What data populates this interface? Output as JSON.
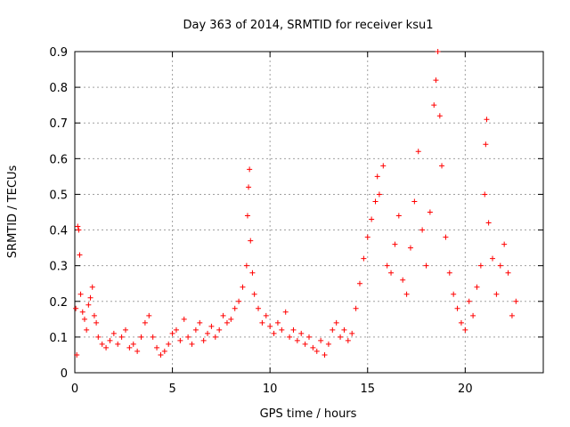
{
  "chart_data": {
    "type": "scatter",
    "title": "Day 363 of 2014, SRMTID for receiver ksu1",
    "xlabel": "GPS time / hours",
    "ylabel": "SRMTID / TECUs",
    "xlim": [
      0,
      24
    ],
    "ylim": [
      0,
      0.9
    ],
    "xticks": [
      0,
      5,
      10,
      15,
      20
    ],
    "yticks": [
      0,
      0.1,
      0.2,
      0.3,
      0.4,
      0.5,
      0.6,
      0.7,
      0.8,
      0.9
    ],
    "grid": true,
    "marker": "+",
    "color": "#ff0000",
    "series": [
      {
        "name": "ksu1",
        "points": [
          [
            0.05,
            0.18
          ],
          [
            0.1,
            0.05
          ],
          [
            0.15,
            0.41
          ],
          [
            0.2,
            0.4
          ],
          [
            0.25,
            0.33
          ],
          [
            0.3,
            0.22
          ],
          [
            0.4,
            0.17
          ],
          [
            0.5,
            0.15
          ],
          [
            0.6,
            0.12
          ],
          [
            0.7,
            0.19
          ],
          [
            0.8,
            0.21
          ],
          [
            0.9,
            0.24
          ],
          [
            1.0,
            0.16
          ],
          [
            1.1,
            0.14
          ],
          [
            1.2,
            0.1
          ],
          [
            1.4,
            0.08
          ],
          [
            1.6,
            0.07
          ],
          [
            1.8,
            0.09
          ],
          [
            2.0,
            0.11
          ],
          [
            2.2,
            0.08
          ],
          [
            2.4,
            0.1
          ],
          [
            2.6,
            0.12
          ],
          [
            2.8,
            0.07
          ],
          [
            3.0,
            0.08
          ],
          [
            3.2,
            0.06
          ],
          [
            3.4,
            0.1
          ],
          [
            3.6,
            0.14
          ],
          [
            3.8,
            0.16
          ],
          [
            4.0,
            0.1
          ],
          [
            4.2,
            0.07
          ],
          [
            4.4,
            0.05
          ],
          [
            4.6,
            0.06
          ],
          [
            4.8,
            0.08
          ],
          [
            5.0,
            0.11
          ],
          [
            5.2,
            0.12
          ],
          [
            5.4,
            0.09
          ],
          [
            5.6,
            0.15
          ],
          [
            5.8,
            0.1
          ],
          [
            6.0,
            0.08
          ],
          [
            6.2,
            0.12
          ],
          [
            6.4,
            0.14
          ],
          [
            6.6,
            0.09
          ],
          [
            6.8,
            0.11
          ],
          [
            7.0,
            0.13
          ],
          [
            7.2,
            0.1
          ],
          [
            7.4,
            0.12
          ],
          [
            7.6,
            0.16
          ],
          [
            7.8,
            0.14
          ],
          [
            8.0,
            0.15
          ],
          [
            8.2,
            0.18
          ],
          [
            8.4,
            0.2
          ],
          [
            8.6,
            0.24
          ],
          [
            8.8,
            0.3
          ],
          [
            8.85,
            0.44
          ],
          [
            8.9,
            0.52
          ],
          [
            8.95,
            0.57
          ],
          [
            9.0,
            0.37
          ],
          [
            9.1,
            0.28
          ],
          [
            9.2,
            0.22
          ],
          [
            9.4,
            0.18
          ],
          [
            9.6,
            0.14
          ],
          [
            9.8,
            0.16
          ],
          [
            10.0,
            0.13
          ],
          [
            10.2,
            0.11
          ],
          [
            10.4,
            0.14
          ],
          [
            10.6,
            0.12
          ],
          [
            10.8,
            0.17
          ],
          [
            11.0,
            0.1
          ],
          [
            11.2,
            0.12
          ],
          [
            11.4,
            0.09
          ],
          [
            11.6,
            0.11
          ],
          [
            11.8,
            0.08
          ],
          [
            12.0,
            0.1
          ],
          [
            12.2,
            0.07
          ],
          [
            12.4,
            0.06
          ],
          [
            12.6,
            0.09
          ],
          [
            12.8,
            0.05
          ],
          [
            13.0,
            0.08
          ],
          [
            13.2,
            0.12
          ],
          [
            13.4,
            0.14
          ],
          [
            13.6,
            0.1
          ],
          [
            13.8,
            0.12
          ],
          [
            14.0,
            0.09
          ],
          [
            14.2,
            0.11
          ],
          [
            14.4,
            0.18
          ],
          [
            14.6,
            0.25
          ],
          [
            14.8,
            0.32
          ],
          [
            15.0,
            0.38
          ],
          [
            15.2,
            0.43
          ],
          [
            15.4,
            0.48
          ],
          [
            15.5,
            0.55
          ],
          [
            15.6,
            0.5
          ],
          [
            15.8,
            0.58
          ],
          [
            16.0,
            0.3
          ],
          [
            16.2,
            0.28
          ],
          [
            16.4,
            0.36
          ],
          [
            16.6,
            0.44
          ],
          [
            16.8,
            0.26
          ],
          [
            17.0,
            0.22
          ],
          [
            17.2,
            0.35
          ],
          [
            17.4,
            0.48
          ],
          [
            17.6,
            0.62
          ],
          [
            17.8,
            0.4
          ],
          [
            18.0,
            0.3
          ],
          [
            18.2,
            0.45
          ],
          [
            18.4,
            0.75
          ],
          [
            18.5,
            0.82
          ],
          [
            18.6,
            0.9
          ],
          [
            18.7,
            0.72
          ],
          [
            18.8,
            0.58
          ],
          [
            19.0,
            0.38
          ],
          [
            19.2,
            0.28
          ],
          [
            19.4,
            0.22
          ],
          [
            19.6,
            0.18
          ],
          [
            19.8,
            0.14
          ],
          [
            20.0,
            0.12
          ],
          [
            20.2,
            0.2
          ],
          [
            20.4,
            0.16
          ],
          [
            20.6,
            0.24
          ],
          [
            20.8,
            0.3
          ],
          [
            21.0,
            0.5
          ],
          [
            21.05,
            0.64
          ],
          [
            21.1,
            0.71
          ],
          [
            21.2,
            0.42
          ],
          [
            21.4,
            0.32
          ],
          [
            21.6,
            0.22
          ],
          [
            21.8,
            0.3
          ],
          [
            22.0,
            0.36
          ],
          [
            22.2,
            0.28
          ],
          [
            22.4,
            0.16
          ],
          [
            22.6,
            0.2
          ]
        ]
      }
    ]
  }
}
